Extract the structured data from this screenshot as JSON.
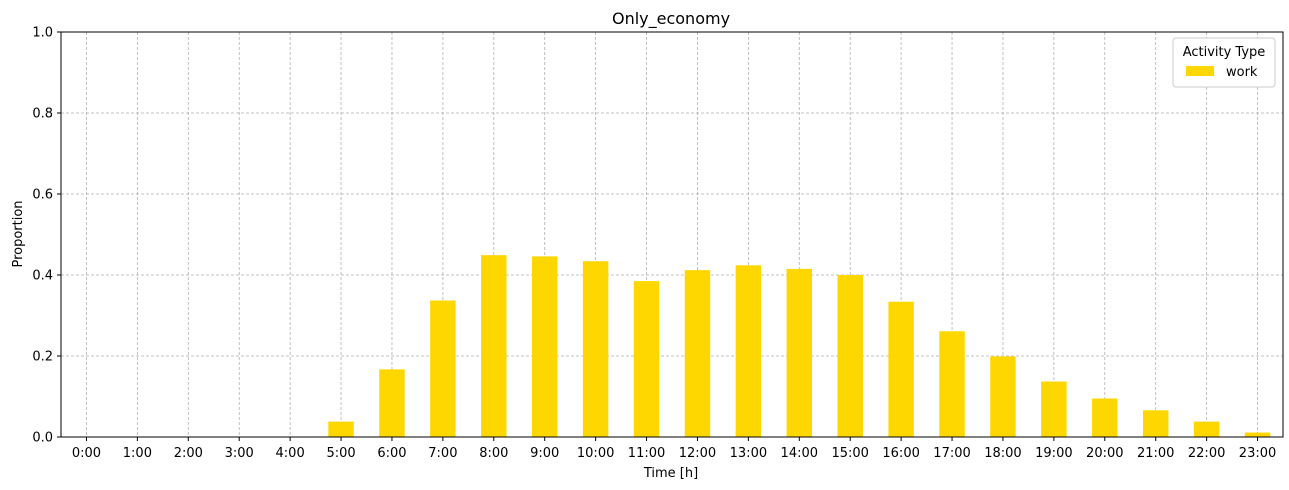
{
  "chart_data": {
    "type": "bar",
    "title": "Only_economy",
    "xlabel": "Time [h]",
    "ylabel": "Proportion",
    "ylim": [
      0,
      1.0
    ],
    "yticks": [
      "0.0",
      "0.2",
      "0.4",
      "0.6",
      "0.8",
      "1.0"
    ],
    "grid": true,
    "legend": {
      "title": "Activity Type",
      "placement": "top-right"
    },
    "categories": [
      "0:00",
      "1:00",
      "2:00",
      "3:00",
      "4:00",
      "5:00",
      "6:00",
      "7:00",
      "8:00",
      "9:00",
      "10:00",
      "11:00",
      "12:00",
      "13:00",
      "14:00",
      "15:00",
      "16:00",
      "17:00",
      "18:00",
      "19:00",
      "20:00",
      "21:00",
      "22:00",
      "23:00"
    ],
    "series": [
      {
        "name": "work",
        "color": "#FFD700",
        "values": [
          0,
          0,
          0,
          0,
          0,
          0.038,
          0.167,
          0.337,
          0.449,
          0.446,
          0.434,
          0.385,
          0.412,
          0.424,
          0.415,
          0.4,
          0.334,
          0.261,
          0.199,
          0.137,
          0.095,
          0.066,
          0.038,
          0.011
        ]
      }
    ]
  }
}
